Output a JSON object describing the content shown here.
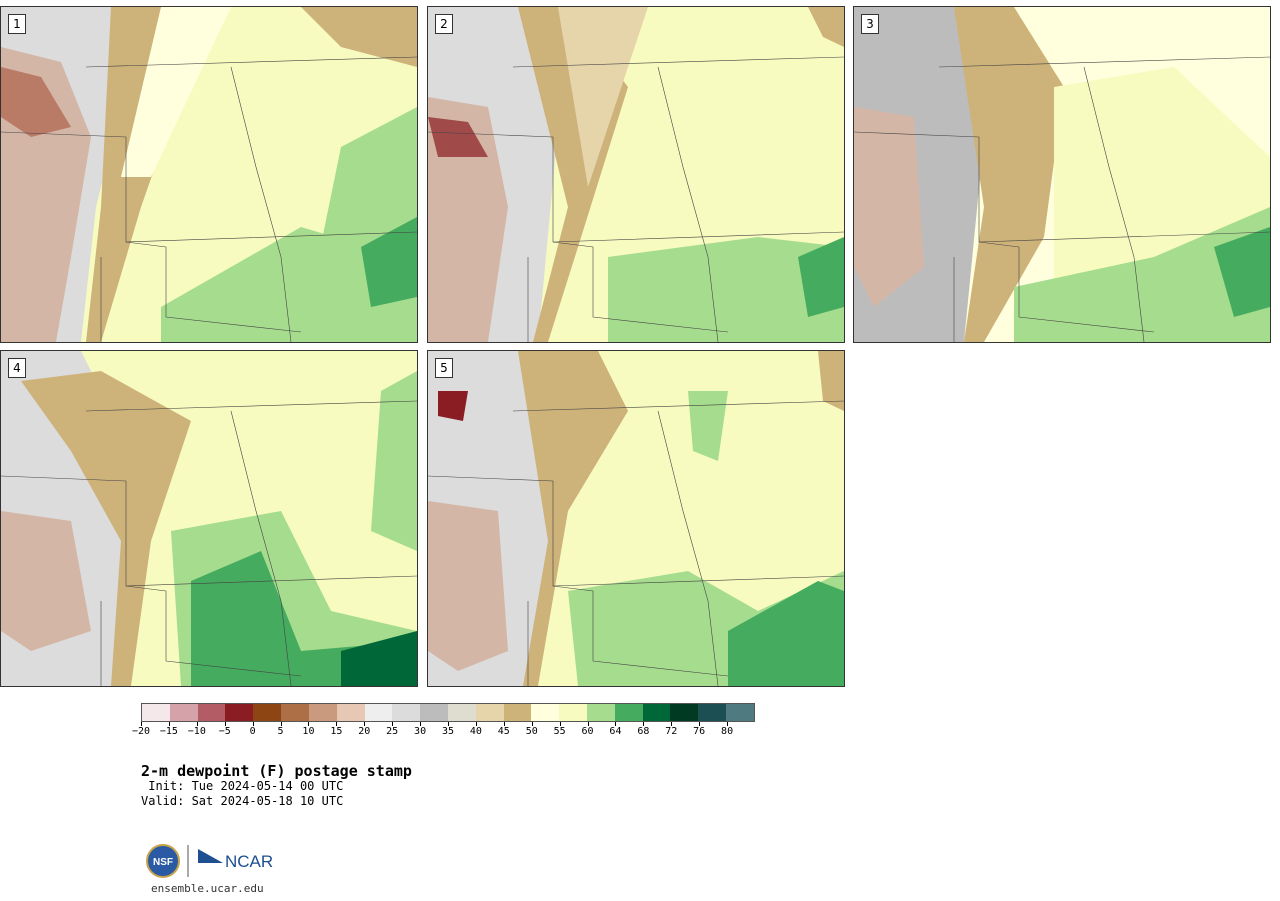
{
  "panels": [
    {
      "label": "1"
    },
    {
      "label": "2"
    },
    {
      "label": "3"
    },
    {
      "label": "4"
    },
    {
      "label": "5"
    }
  ],
  "colorbar": {
    "colors": [
      "#f5e8ea",
      "#d6a2aa",
      "#b35c66",
      "#8a1c24",
      "#8c4513",
      "#ad6f45",
      "#c99a7d",
      "#e6c8b5",
      "#eeeeee",
      "#dcdcdc",
      "#bcbcbc",
      "#dfddd0",
      "#e6d5aa",
      "#cdb27a",
      "#ffffdd",
      "#f7fbbf",
      "#a6dc8e",
      "#44ab5f",
      "#006838",
      "#003a22",
      "#1b4f54",
      "#4f7b80"
    ],
    "tick_labels": [
      "−20",
      "−15",
      "−10",
      "−5",
      "0",
      "5",
      "10",
      "15",
      "20",
      "25",
      "30",
      "35",
      "40",
      "45",
      "50",
      "55",
      "60",
      "64",
      "68",
      "72",
      "76",
      "80"
    ]
  },
  "title": "2-m dewpoint (F) postage stamp",
  "init": " Init: Tue 2024-05-14 00 UTC",
  "valid": "Valid: Sat 2024-05-18 10 UTC",
  "logo": {
    "nsf": "NSF",
    "ncar": "NCAR"
  },
  "site": "ensemble.ucar.edu"
}
